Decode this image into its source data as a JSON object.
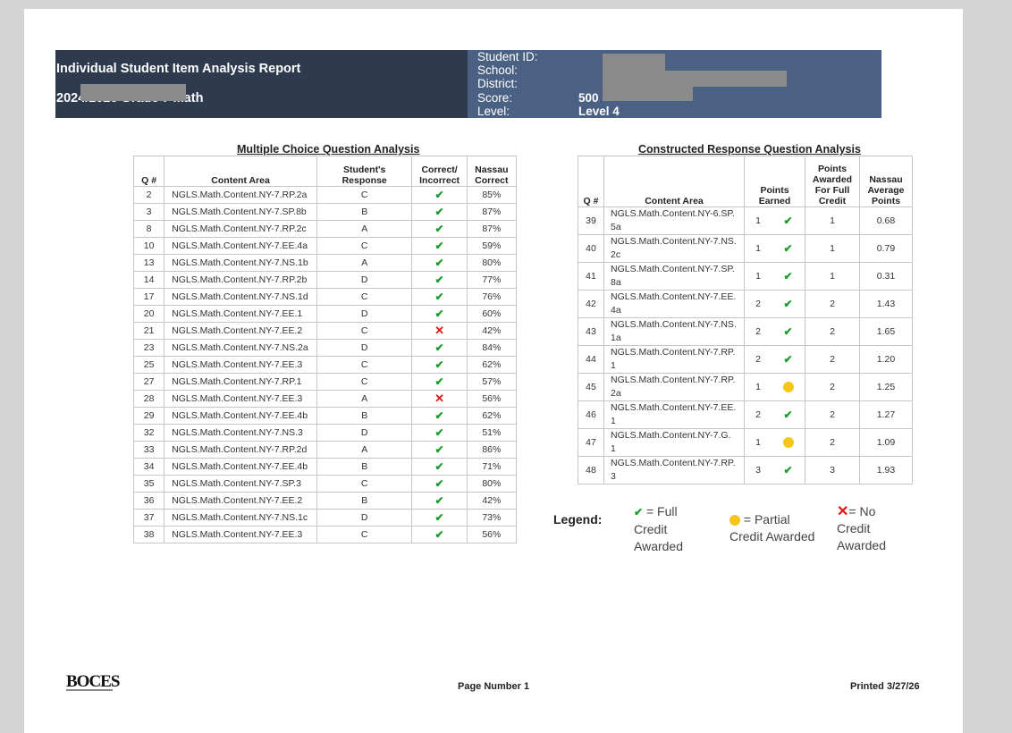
{
  "header": {
    "title": "Individual Student Item Analysis Report",
    "subtitle": "2024/2025 Grade 7 Math",
    "labels": [
      "Student ID:",
      "School:",
      "District:",
      "Score:",
      "Level:"
    ],
    "score": "500",
    "level": "Level 4"
  },
  "mc": {
    "title": "Multiple Choice Question Analysis",
    "headers": [
      "Q #",
      "Content Area",
      "Student's Response",
      "Correct/ Incorrect",
      "Nassau Correct"
    ],
    "rows": [
      {
        "q": "2",
        "area": "NGLS.Math.Content.NY-7.RP.2a",
        "resp": "C",
        "mark": "check",
        "pct": "85%"
      },
      {
        "q": "3",
        "area": "NGLS.Math.Content.NY-7.SP.8b",
        "resp": "B",
        "mark": "check",
        "pct": "87%"
      },
      {
        "q": "8",
        "area": "NGLS.Math.Content.NY-7.RP.2c",
        "resp": "A",
        "mark": "check",
        "pct": "87%"
      },
      {
        "q": "10",
        "area": "NGLS.Math.Content.NY-7.EE.4a",
        "resp": "C",
        "mark": "check",
        "pct": "59%"
      },
      {
        "q": "13",
        "area": "NGLS.Math.Content.NY-7.NS.1b",
        "resp": "A",
        "mark": "check",
        "pct": "80%"
      },
      {
        "q": "14",
        "area": "NGLS.Math.Content.NY-7.RP.2b",
        "resp": "D",
        "mark": "check",
        "pct": "77%"
      },
      {
        "q": "17",
        "area": "NGLS.Math.Content.NY-7.NS.1d",
        "resp": "C",
        "mark": "check",
        "pct": "76%"
      },
      {
        "q": "20",
        "area": "NGLS.Math.Content.NY-7.EE.1",
        "resp": "D",
        "mark": "check",
        "pct": "60%"
      },
      {
        "q": "21",
        "area": "NGLS.Math.Content.NY-7.EE.2",
        "resp": "C",
        "mark": "x",
        "pct": "42%"
      },
      {
        "q": "23",
        "area": "NGLS.Math.Content.NY-7.NS.2a",
        "resp": "D",
        "mark": "check",
        "pct": "84%"
      },
      {
        "q": "25",
        "area": "NGLS.Math.Content.NY-7.EE.3",
        "resp": "C",
        "mark": "check",
        "pct": "62%"
      },
      {
        "q": "27",
        "area": "NGLS.Math.Content.NY-7.RP.1",
        "resp": "C",
        "mark": "check",
        "pct": "57%"
      },
      {
        "q": "28",
        "area": "NGLS.Math.Content.NY-7.EE.3",
        "resp": "A",
        "mark": "x",
        "pct": "56%"
      },
      {
        "q": "29",
        "area": "NGLS.Math.Content.NY-7.EE.4b",
        "resp": "B",
        "mark": "check",
        "pct": "62%"
      },
      {
        "q": "32",
        "area": "NGLS.Math.Content.NY-7.NS.3",
        "resp": "D",
        "mark": "check",
        "pct": "51%"
      },
      {
        "q": "33",
        "area": "NGLS.Math.Content.NY-7.RP.2d",
        "resp": "A",
        "mark": "check",
        "pct": "86%"
      },
      {
        "q": "34",
        "area": "NGLS.Math.Content.NY-7.EE.4b",
        "resp": "B",
        "mark": "check",
        "pct": "71%"
      },
      {
        "q": "35",
        "area": "NGLS.Math.Content.NY-7.SP.3",
        "resp": "C",
        "mark": "check",
        "pct": "80%"
      },
      {
        "q": "36",
        "area": "NGLS.Math.Content.NY-7.EE.2",
        "resp": "B",
        "mark": "check",
        "pct": "42%"
      },
      {
        "q": "37",
        "area": "NGLS.Math.Content.NY-7.NS.1c",
        "resp": "D",
        "mark": "check",
        "pct": "73%"
      },
      {
        "q": "38",
        "area": "NGLS.Math.Content.NY-7.EE.3",
        "resp": "C",
        "mark": "check",
        "pct": "56%"
      }
    ]
  },
  "cr": {
    "title": "Constructed Response Question Analysis",
    "headers": [
      "Q #",
      "Content Area",
      "Points Earned",
      "Points Awarded For Full Credit",
      "Nassau Average Points"
    ],
    "rows": [
      {
        "q": "39",
        "area1": "NGLS.Math.Content.NY-6.SP.",
        "area2": "5a",
        "pts": "1",
        "mark": "check",
        "full": "1",
        "avg": "0.68"
      },
      {
        "q": "40",
        "area1": "NGLS.Math.Content.NY-7.NS.",
        "area2": "2c",
        "pts": "1",
        "mark": "check",
        "full": "1",
        "avg": "0.79"
      },
      {
        "q": "41",
        "area1": "NGLS.Math.Content.NY-7.SP.",
        "area2": "8a",
        "pts": "1",
        "mark": "check",
        "full": "1",
        "avg": "0.31"
      },
      {
        "q": "42",
        "area1": "NGLS.Math.Content.NY-7.EE.",
        "area2": "4a",
        "pts": "2",
        "mark": "check",
        "full": "2",
        "avg": "1.43"
      },
      {
        "q": "43",
        "area1": "NGLS.Math.Content.NY-7.NS.",
        "area2": "1a",
        "pts": "2",
        "mark": "check",
        "full": "2",
        "avg": "1.65"
      },
      {
        "q": "44",
        "area1": "NGLS.Math.Content.NY-7.RP.",
        "area2": "1",
        "pts": "2",
        "mark": "check",
        "full": "2",
        "avg": "1.20"
      },
      {
        "q": "45",
        "area1": "NGLS.Math.Content.NY-7.RP.",
        "area2": "2a",
        "pts": "1",
        "mark": "dot",
        "full": "2",
        "avg": "1.25"
      },
      {
        "q": "46",
        "area1": "NGLS.Math.Content.NY-7.EE.",
        "area2": "1",
        "pts": "2",
        "mark": "check",
        "full": "2",
        "avg": "1.27"
      },
      {
        "q": "47",
        "area1": "NGLS.Math.Content.NY-7.G.",
        "area2": "1",
        "pts": "1",
        "mark": "dot",
        "full": "2",
        "avg": "1.09"
      },
      {
        "q": "48",
        "area1": "NGLS.Math.Content.NY-7.RP.",
        "area2": "3",
        "pts": "3",
        "mark": "check",
        "full": "3",
        "avg": "1.93"
      }
    ]
  },
  "legend": {
    "title": "Legend:",
    "full": [
      "= Full",
      "Credit",
      "Awarded"
    ],
    "partial": [
      "= Partial",
      "Credit Awarded"
    ],
    "none": [
      "= No",
      "Credit",
      "Awarded"
    ]
  },
  "footer": {
    "logo": "BOCES",
    "page": "Page Number  1",
    "printed": "Printed  3/27/26"
  },
  "icons": {
    "check": "check-icon",
    "x": "x-icon",
    "dot": "partial-dot-icon"
  },
  "colors": {
    "header_dark": "#2e3a4e",
    "header_blue": "#4b6183",
    "check": "#1a9c2a",
    "x": "#e01818",
    "partial": "#f5c518"
  }
}
